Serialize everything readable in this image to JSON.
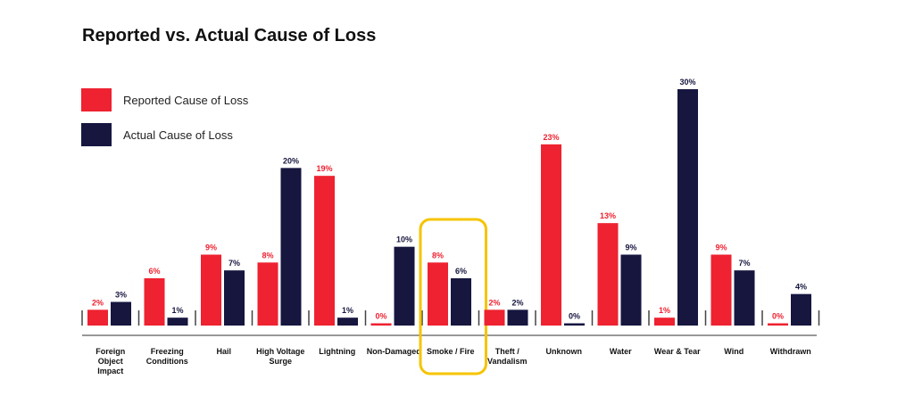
{
  "chart_data": {
    "type": "bar",
    "title": "Reported vs. Actual Cause of Loss",
    "xlabel": "",
    "ylabel": "",
    "ylim": [
      0,
      30
    ],
    "grid": false,
    "legend_position": "top-left",
    "categories": [
      "Foreign Object Impact",
      "Freezing Conditions",
      "Hail",
      "High Voltage Surge",
      "Lightning",
      "Non-Damaged",
      "Smoke / Fire",
      "Theft / Vandalism",
      "Unknown",
      "Water",
      "Wear & Tear",
      "Wind",
      "Withdrawn"
    ],
    "category_lines": [
      [
        "Foreign",
        "Object",
        "Impact"
      ],
      [
        "Freezing",
        "Conditions"
      ],
      [
        "Hail"
      ],
      [
        "High Voltage",
        "Surge"
      ],
      [
        "Lightning"
      ],
      [
        "Non-Damaged"
      ],
      [
        "Smoke / Fire"
      ],
      [
        "Theft /",
        "Vandalism"
      ],
      [
        "Unknown"
      ],
      [
        "Water"
      ],
      [
        "Wear & Tear"
      ],
      [
        "Wind"
      ],
      [
        "Withdrawn"
      ]
    ],
    "series": [
      {
        "name": "Reported Cause of Loss",
        "color": "#ee2230",
        "values": [
          2,
          6,
          9,
          8,
          19,
          0,
          8,
          2,
          23,
          13,
          1,
          9,
          0
        ]
      },
      {
        "name": "Actual Cause of Loss",
        "color": "#16163f",
        "values": [
          3,
          1,
          7,
          20,
          1,
          10,
          6,
          2,
          0,
          9,
          30,
          7,
          4
        ]
      }
    ],
    "value_suffix": "%",
    "highlight": {
      "category": "Smoke / Fire",
      "color": "#f5c400"
    }
  }
}
